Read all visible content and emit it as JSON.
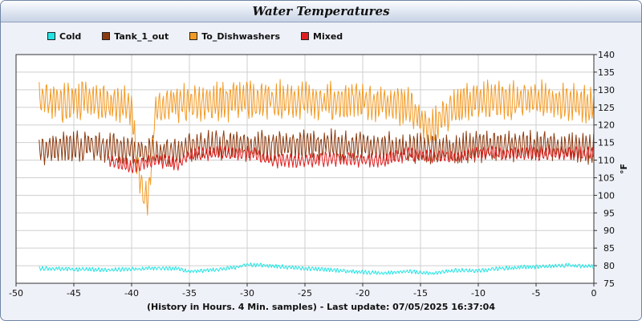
{
  "chart_data": {
    "type": "line",
    "title": "Water Temperatures",
    "xlabel": "(History in Hours. 4 Min. samples) - Last update: 07/05/2025 16:37:04",
    "ylabel": "°F",
    "xlim": [
      -50,
      0
    ],
    "ylim": [
      75,
      140
    ],
    "x_ticks": [
      -50,
      -45,
      -40,
      -35,
      -30,
      -25,
      -20,
      -15,
      -10,
      -5,
      0
    ],
    "y_ticks": [
      75,
      80,
      85,
      90,
      95,
      100,
      105,
      110,
      115,
      120,
      125,
      130,
      135,
      140
    ],
    "grid": true,
    "legend_position": "top-left",
    "x_range_data": [
      -48,
      0
    ],
    "series": [
      {
        "name": "Cold",
        "color": "#22e4e4",
        "points": [
          [
            -48,
            79.2
          ],
          [
            -45,
            79.0
          ],
          [
            -42,
            78.8
          ],
          [
            -40,
            79.0
          ],
          [
            -38,
            79.3
          ],
          [
            -36,
            79.2
          ],
          [
            -35,
            78.3
          ],
          [
            -33,
            78.8
          ],
          [
            -31,
            79.5
          ],
          [
            -30,
            80.3
          ],
          [
            -28,
            80.0
          ],
          [
            -26,
            79.4
          ],
          [
            -24,
            79.0
          ],
          [
            -22,
            78.6
          ],
          [
            -20,
            78.2
          ],
          [
            -18,
            77.9
          ],
          [
            -16,
            78.4
          ],
          [
            -14,
            77.8
          ],
          [
            -12,
            78.7
          ],
          [
            -10,
            78.6
          ],
          [
            -8,
            79.2
          ],
          [
            -6,
            79.6
          ],
          [
            -4,
            79.8
          ],
          [
            -2,
            80.1
          ],
          [
            0,
            79.8
          ]
        ]
      },
      {
        "name": "Tank_1_out",
        "color": "#8b3a10",
        "points": [
          [
            -48,
            113
          ],
          [
            -46,
            114
          ],
          [
            -44,
            114
          ],
          [
            -42,
            113.5
          ],
          [
            -40,
            113
          ],
          [
            -39,
            112
          ],
          [
            -38,
            113
          ],
          [
            -36,
            112
          ],
          [
            -35,
            114
          ],
          [
            -30,
            114
          ],
          [
            -25,
            114.5
          ],
          [
            -20,
            114
          ],
          [
            -15,
            113.5
          ],
          [
            -12,
            113
          ],
          [
            -10,
            114
          ],
          [
            -5,
            114
          ],
          [
            0,
            113
          ]
        ]
      },
      {
        "name": "To_Dishwashers",
        "color": "#f39a24",
        "points": [
          [
            -48,
            127
          ],
          [
            -46,
            126
          ],
          [
            -44,
            127
          ],
          [
            -42,
            126
          ],
          [
            -40,
            125
          ],
          [
            -39.5,
            108
          ],
          [
            -39,
            101
          ],
          [
            -38.5,
            99
          ],
          [
            -38,
            124
          ],
          [
            -36,
            126
          ],
          [
            -35,
            126
          ],
          [
            -30,
            127
          ],
          [
            -25,
            127
          ],
          [
            -22,
            126.5
          ],
          [
            -20,
            127
          ],
          [
            -16,
            125
          ],
          [
            -14,
            118.5
          ],
          [
            -12,
            126
          ],
          [
            -10,
            127
          ],
          [
            -5,
            127
          ],
          [
            0,
            126
          ]
        ]
      },
      {
        "name": "Mixed",
        "color": "#e01e1e",
        "points": [
          [
            -42,
            110
          ],
          [
            -40,
            108
          ],
          [
            -38,
            110
          ],
          [
            -36,
            109
          ],
          [
            -35,
            112
          ],
          [
            -30,
            112
          ],
          [
            -28,
            110
          ],
          [
            -25,
            110
          ],
          [
            -22,
            110.5
          ],
          [
            -20,
            110
          ],
          [
            -18,
            110
          ],
          [
            -16,
            112
          ],
          [
            -14,
            111
          ],
          [
            -12,
            111
          ],
          [
            -10,
            112
          ],
          [
            0,
            112
          ]
        ]
      }
    ]
  }
}
